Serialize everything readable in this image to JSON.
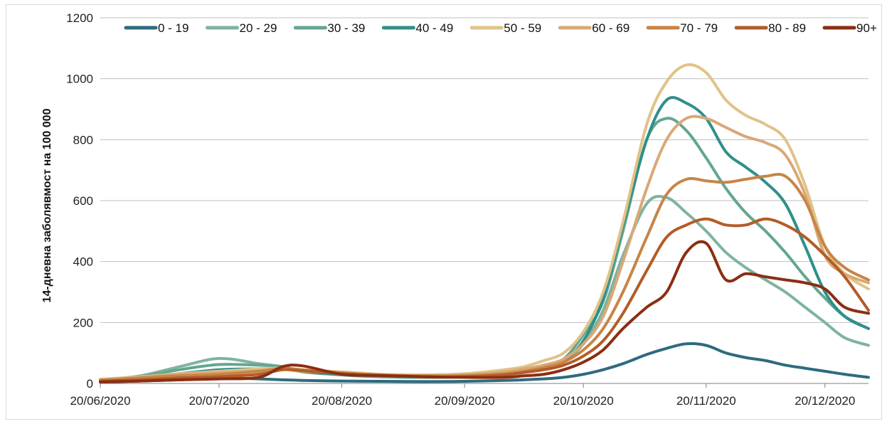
{
  "chart_data": {
    "type": "line",
    "title": "",
    "xlabel": "",
    "ylabel": "14-дневна заболявмост на 100 000",
    "ylim": [
      0,
      1200
    ],
    "yticks": [
      0,
      200,
      400,
      600,
      800,
      1000,
      1200
    ],
    "xlim": [
      "2020-06-20",
      "2020-12-31"
    ],
    "xticks": [
      {
        "date": "2020-06-20",
        "label": "20/06/2020"
      },
      {
        "date": "2020-07-20",
        "label": "20/07/2020"
      },
      {
        "date": "2020-08-20",
        "label": "20/08/2020"
      },
      {
        "date": "2020-09-20",
        "label": "20/09/2020"
      },
      {
        "date": "2020-10-20",
        "label": "20/10/2020"
      },
      {
        "date": "2020-11-20",
        "label": "20/11/2020"
      },
      {
        "date": "2020-12-20",
        "label": "20/12/2020"
      }
    ],
    "grid": "horizontal",
    "legend": "top",
    "x": [
      "2020-06-20",
      "2020-06-30",
      "2020-07-10",
      "2020-07-20",
      "2020-07-30",
      "2020-08-05",
      "2020-08-10",
      "2020-08-20",
      "2020-08-30",
      "2020-09-10",
      "2020-09-20",
      "2020-09-30",
      "2020-10-05",
      "2020-10-10",
      "2020-10-15",
      "2020-10-20",
      "2020-10-25",
      "2020-10-30",
      "2020-11-05",
      "2020-11-10",
      "2020-11-15",
      "2020-11-20",
      "2020-11-25",
      "2020-11-30",
      "2020-12-05",
      "2020-12-10",
      "2020-12-15",
      "2020-12-20",
      "2020-12-25",
      "2020-12-31"
    ],
    "series": [
      {
        "name": "0 - 19",
        "color": "#2e6b7e",
        "values": [
          5,
          8,
          12,
          18,
          15,
          12,
          10,
          8,
          7,
          6,
          7,
          10,
          12,
          15,
          20,
          30,
          45,
          65,
          95,
          115,
          130,
          125,
          100,
          85,
          75,
          60,
          50,
          40,
          30,
          20
        ]
      },
      {
        "name": "20 - 29",
        "color": "#7fb3a0",
        "values": [
          12,
          25,
          55,
          82,
          65,
          55,
          40,
          28,
          22,
          20,
          22,
          30,
          40,
          50,
          70,
          130,
          240,
          420,
          590,
          610,
          560,
          500,
          430,
          380,
          340,
          300,
          250,
          200,
          150,
          125
        ]
      },
      {
        "name": "30 - 39",
        "color": "#64a690",
        "values": [
          10,
          22,
          45,
          62,
          60,
          55,
          38,
          28,
          22,
          20,
          22,
          32,
          45,
          60,
          80,
          160,
          270,
          500,
          800,
          870,
          830,
          740,
          640,
          560,
          500,
          430,
          350,
          280,
          220,
          180
        ]
      },
      {
        "name": "40 - 49",
        "color": "#2f8f8a",
        "values": [
          10,
          18,
          32,
          45,
          48,
          48,
          40,
          30,
          25,
          22,
          22,
          30,
          42,
          55,
          75,
          140,
          280,
          520,
          800,
          930,
          920,
          870,
          760,
          710,
          660,
          590,
          450,
          300,
          220,
          180
        ]
      },
      {
        "name": "50 - 59",
        "color": "#e0c388",
        "values": [
          14,
          22,
          32,
          40,
          48,
          50,
          45,
          38,
          30,
          28,
          32,
          45,
          55,
          75,
          100,
          170,
          300,
          530,
          850,
          990,
          1045,
          1020,
          930,
          880,
          850,
          800,
          650,
          450,
          360,
          310
        ]
      },
      {
        "name": "60 - 69",
        "color": "#d9a877",
        "values": [
          12,
          20,
          30,
          36,
          42,
          46,
          40,
          35,
          28,
          26,
          28,
          38,
          48,
          60,
          80,
          130,
          220,
          400,
          640,
          800,
          870,
          870,
          840,
          810,
          790,
          750,
          620,
          420,
          360,
          330
        ]
      },
      {
        "name": "70 - 79",
        "color": "#c78547",
        "values": [
          10,
          18,
          25,
          30,
          40,
          50,
          45,
          35,
          28,
          25,
          26,
          32,
          40,
          52,
          70,
          110,
          180,
          300,
          480,
          620,
          670,
          665,
          660,
          670,
          680,
          680,
          600,
          450,
          380,
          340
        ]
      },
      {
        "name": "80 - 89",
        "color": "#b35c27",
        "values": [
          8,
          12,
          18,
          22,
          30,
          45,
          42,
          32,
          26,
          22,
          22,
          28,
          36,
          45,
          60,
          90,
          140,
          230,
          370,
          480,
          520,
          540,
          520,
          520,
          540,
          520,
          480,
          420,
          350,
          240
        ]
      },
      {
        "name": "90+",
        "color": "#8b2e12",
        "values": [
          5,
          8,
          12,
          15,
          20,
          55,
          58,
          30,
          26,
          22,
          20,
          20,
          25,
          30,
          45,
          70,
          110,
          180,
          250,
          300,
          430,
          460,
          340,
          360,
          350,
          340,
          330,
          310,
          250,
          230
        ]
      }
    ]
  }
}
